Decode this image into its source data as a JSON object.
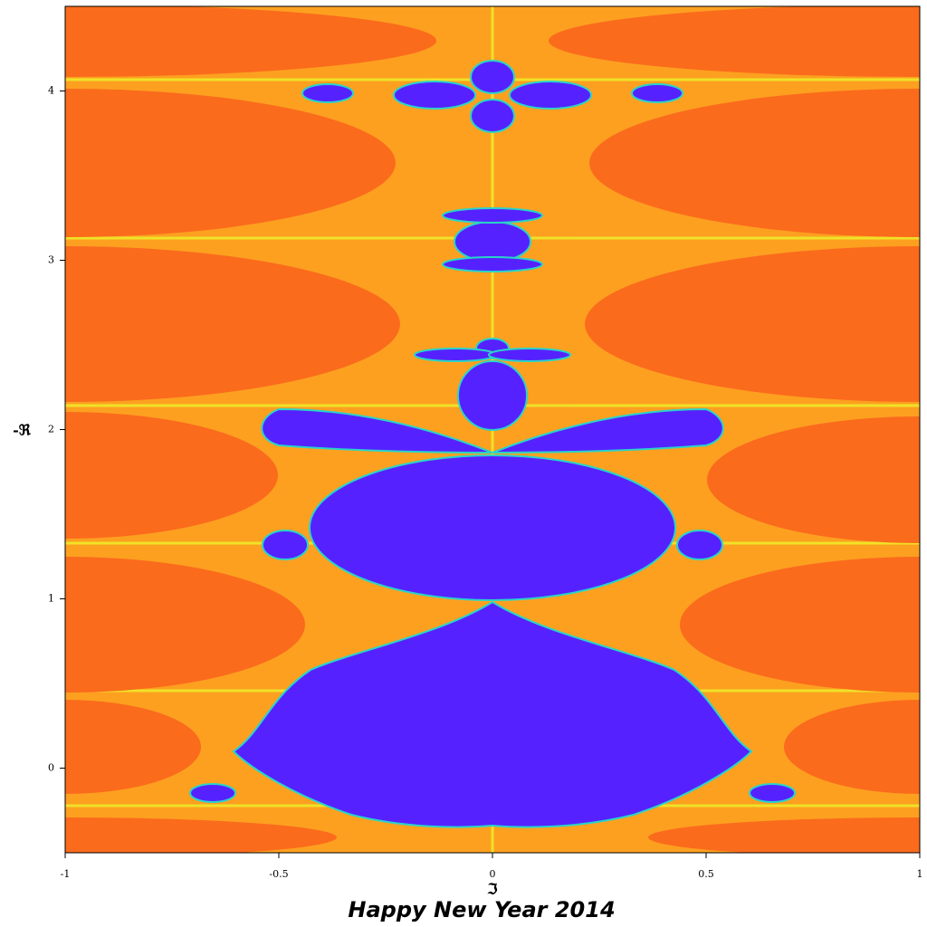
{
  "chart_data": {
    "type": "fractal",
    "title": "Happy New Year 2014",
    "xlabel": "ℑ",
    "ylabel": "-ℜ",
    "xlim": [
      -1,
      1
    ],
    "ylim": [
      -0.5,
      4.5
    ],
    "xticks": [
      -1,
      -0.5,
      0,
      0.5,
      1
    ],
    "yticks": [
      0,
      1,
      2,
      3,
      4
    ]
  }
}
